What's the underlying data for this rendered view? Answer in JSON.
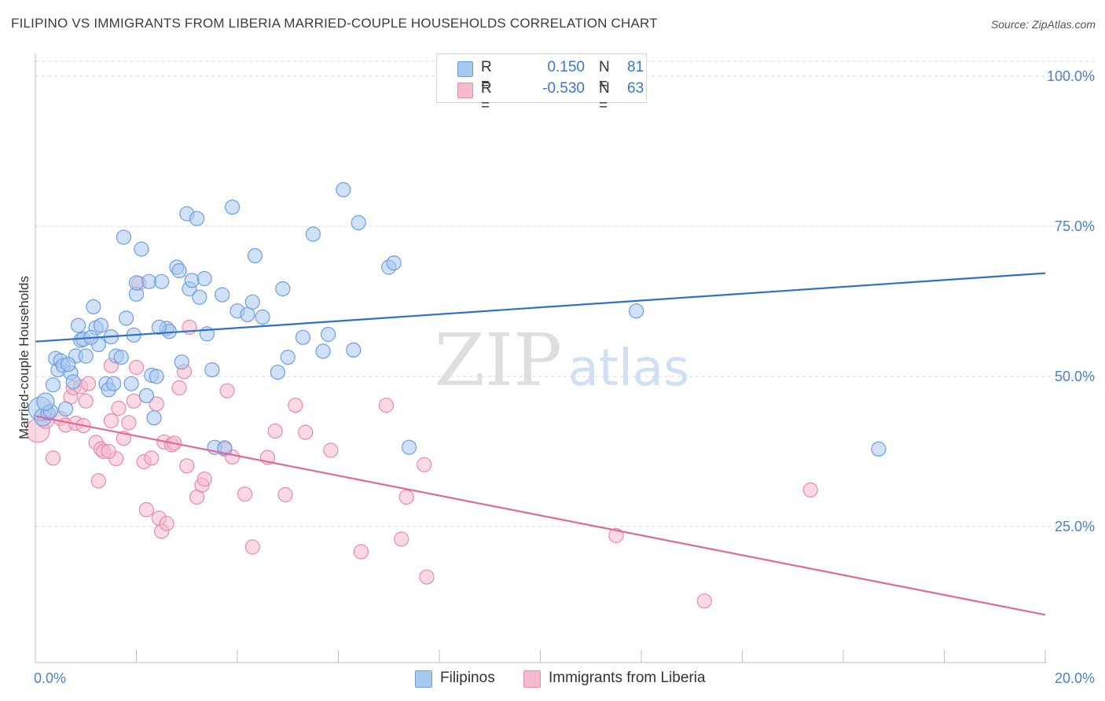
{
  "header": {
    "title": "FILIPINO VS IMMIGRANTS FROM LIBERIA MARRIED-COUPLE HOUSEHOLDS CORRELATION CHART",
    "source": "Source: ZipAtlas.com"
  },
  "watermark": {
    "zip": "ZIP",
    "atlas": "atlas"
  },
  "legend": {
    "rows": [
      {
        "r_label": "R =",
        "r_value": "0.150",
        "n_label": "N =",
        "n_value": "81"
      },
      {
        "r_label": "R =",
        "r_value": "-0.530",
        "n_label": "N =",
        "n_value": "63"
      }
    ]
  },
  "bottom_legend": {
    "items": [
      "Filipinos",
      "Immigrants from Liberia"
    ]
  },
  "colors": {
    "blue_fill": "#a9c8f0",
    "blue_stroke": "#6c9ee0",
    "blue_line": "#2f6fce",
    "pink_fill": "#f7b9cc",
    "pink_stroke": "#e98aa9",
    "pink_line": "#e0689a",
    "tick_text": "#4a7fcf",
    "grid": "#d8d8d8"
  },
  "chart_data": {
    "type": "scatter",
    "title": "FILIPINO VS IMMIGRANTS FROM LIBERIA MARRIED-COUPLE HOUSEHOLDS CORRELATION CHART",
    "xlabel": "",
    "ylabel": "Married-couple Households",
    "xlim": [
      0,
      20
    ],
    "ylim": [
      0,
      105
    ],
    "x_tick_labels": [
      "0.0%",
      "20.0%"
    ],
    "y_ticks": [
      25,
      50,
      75,
      100
    ],
    "y_tick_labels": [
      "25.0%",
      "50.0%",
      "75.0%",
      "100.0%"
    ],
    "grid": "horizontal dashed",
    "legend_position": "top-center",
    "series": [
      {
        "name": "Filipinos",
        "color": "#a9c8f0",
        "R": 0.15,
        "N": 81,
        "trend": {
          "x": [
            0,
            20
          ],
          "y": [
            55.8,
            67.2
          ]
        },
        "points": [
          [
            0.1,
            44.6
          ],
          [
            0.15,
            43.2
          ],
          [
            0.25,
            43.9
          ],
          [
            0.3,
            44.2
          ],
          [
            0.35,
            48.6
          ],
          [
            0.4,
            53.0
          ],
          [
            0.45,
            51.1
          ],
          [
            0.5,
            52.6
          ],
          [
            0.55,
            51.8
          ],
          [
            0.6,
            44.6
          ],
          [
            0.7,
            50.6
          ],
          [
            0.75,
            49.1
          ],
          [
            0.8,
            53.4
          ],
          [
            0.85,
            58.5
          ],
          [
            0.9,
            56.0
          ],
          [
            0.95,
            56.2
          ],
          [
            1.0,
            53.4
          ],
          [
            1.15,
            61.6
          ],
          [
            1.2,
            58.1
          ],
          [
            1.25,
            55.3
          ],
          [
            1.3,
            58.5
          ],
          [
            1.4,
            48.8
          ],
          [
            1.45,
            47.8
          ],
          [
            1.5,
            56.6
          ],
          [
            1.6,
            53.4
          ],
          [
            1.7,
            53.2
          ],
          [
            1.75,
            73.2
          ],
          [
            1.8,
            59.7
          ],
          [
            1.9,
            48.8
          ],
          [
            1.95,
            56.9
          ],
          [
            2.0,
            63.7
          ],
          [
            2.1,
            71.2
          ],
          [
            2.2,
            46.8
          ],
          [
            2.25,
            65.8
          ],
          [
            2.3,
            50.2
          ],
          [
            2.35,
            43.1
          ],
          [
            2.4,
            50.0
          ],
          [
            2.5,
            65.8
          ],
          [
            2.6,
            58.0
          ],
          [
            2.65,
            57.5
          ],
          [
            2.8,
            68.2
          ],
          [
            2.85,
            67.6
          ],
          [
            2.9,
            52.4
          ],
          [
            3.0,
            77.1
          ],
          [
            3.05,
            64.6
          ],
          [
            3.1,
            66.0
          ],
          [
            3.2,
            76.3
          ],
          [
            3.25,
            63.2
          ],
          [
            3.35,
            66.3
          ],
          [
            3.4,
            57.1
          ],
          [
            3.5,
            51.1
          ],
          [
            3.55,
            38.2
          ],
          [
            3.7,
            63.6
          ],
          [
            3.9,
            78.2
          ],
          [
            4.0,
            60.9
          ],
          [
            4.2,
            60.3
          ],
          [
            4.3,
            62.4
          ],
          [
            4.35,
            70.1
          ],
          [
            4.5,
            59.9
          ],
          [
            4.8,
            50.7
          ],
          [
            4.9,
            64.6
          ],
          [
            5.0,
            53.2
          ],
          [
            5.5,
            73.7
          ],
          [
            5.3,
            56.5
          ],
          [
            5.7,
            54.2
          ],
          [
            6.1,
            81.1
          ],
          [
            6.3,
            54.4
          ],
          [
            6.4,
            75.6
          ],
          [
            7.0,
            68.2
          ],
          [
            7.1,
            68.9
          ],
          [
            7.4,
            38.2
          ],
          [
            11.9,
            60.9
          ],
          [
            16.7,
            37.9
          ],
          [
            2.0,
            65.6
          ],
          [
            1.55,
            48.8
          ],
          [
            3.75,
            38.1
          ],
          [
            0.2,
            45.8
          ],
          [
            0.65,
            52.0
          ],
          [
            1.1,
            56.5
          ],
          [
            2.45,
            58.2
          ],
          [
            5.8,
            57.0
          ]
        ]
      },
      {
        "name": "Immigrants from Liberia",
        "color": "#f7b9cc",
        "R": -0.53,
        "N": 63,
        "trend": {
          "x": [
            0,
            20
          ],
          "y": [
            43.4,
            10.3
          ]
        },
        "points": [
          [
            0.05,
            41.0
          ],
          [
            0.2,
            42.8
          ],
          [
            0.35,
            36.4
          ],
          [
            0.5,
            43.0
          ],
          [
            0.6,
            41.9
          ],
          [
            0.7,
            46.6
          ],
          [
            0.75,
            48.1
          ],
          [
            0.8,
            42.2
          ],
          [
            0.9,
            48.3
          ],
          [
            1.0,
            45.9
          ],
          [
            1.05,
            48.8
          ],
          [
            1.2,
            39.0
          ],
          [
            1.25,
            32.6
          ],
          [
            1.3,
            37.9
          ],
          [
            1.35,
            37.5
          ],
          [
            1.5,
            42.6
          ],
          [
            1.5,
            51.8
          ],
          [
            1.6,
            36.3
          ],
          [
            1.65,
            44.7
          ],
          [
            1.75,
            39.7
          ],
          [
            1.85,
            42.3
          ],
          [
            1.95,
            45.9
          ],
          [
            2.0,
            51.5
          ],
          [
            2.05,
            65.5
          ],
          [
            2.15,
            35.8
          ],
          [
            2.2,
            27.8
          ],
          [
            2.3,
            36.4
          ],
          [
            2.4,
            45.4
          ],
          [
            2.45,
            26.4
          ],
          [
            2.5,
            24.2
          ],
          [
            2.55,
            39.1
          ],
          [
            2.6,
            25.5
          ],
          [
            2.7,
            38.6
          ],
          [
            2.85,
            48.1
          ],
          [
            2.95,
            50.8
          ],
          [
            3.0,
            35.1
          ],
          [
            3.05,
            58.2
          ],
          [
            3.2,
            29.9
          ],
          [
            3.3,
            31.9
          ],
          [
            3.35,
            32.9
          ],
          [
            3.75,
            37.9
          ],
          [
            3.8,
            47.6
          ],
          [
            3.9,
            36.6
          ],
          [
            4.15,
            30.4
          ],
          [
            4.3,
            21.6
          ],
          [
            4.6,
            36.5
          ],
          [
            4.75,
            40.9
          ],
          [
            4.95,
            30.3
          ],
          [
            5.15,
            45.2
          ],
          [
            5.35,
            40.7
          ],
          [
            5.85,
            37.7
          ],
          [
            6.45,
            20.8
          ],
          [
            6.95,
            45.2
          ],
          [
            7.25,
            22.9
          ],
          [
            7.35,
            29.9
          ],
          [
            7.75,
            16.6
          ],
          [
            7.7,
            35.3
          ],
          [
            11.5,
            23.5
          ],
          [
            15.35,
            31.1
          ],
          [
            13.25,
            12.6
          ],
          [
            1.45,
            37.5
          ],
          [
            0.95,
            41.8
          ],
          [
            2.75,
            38.9
          ]
        ]
      }
    ]
  }
}
